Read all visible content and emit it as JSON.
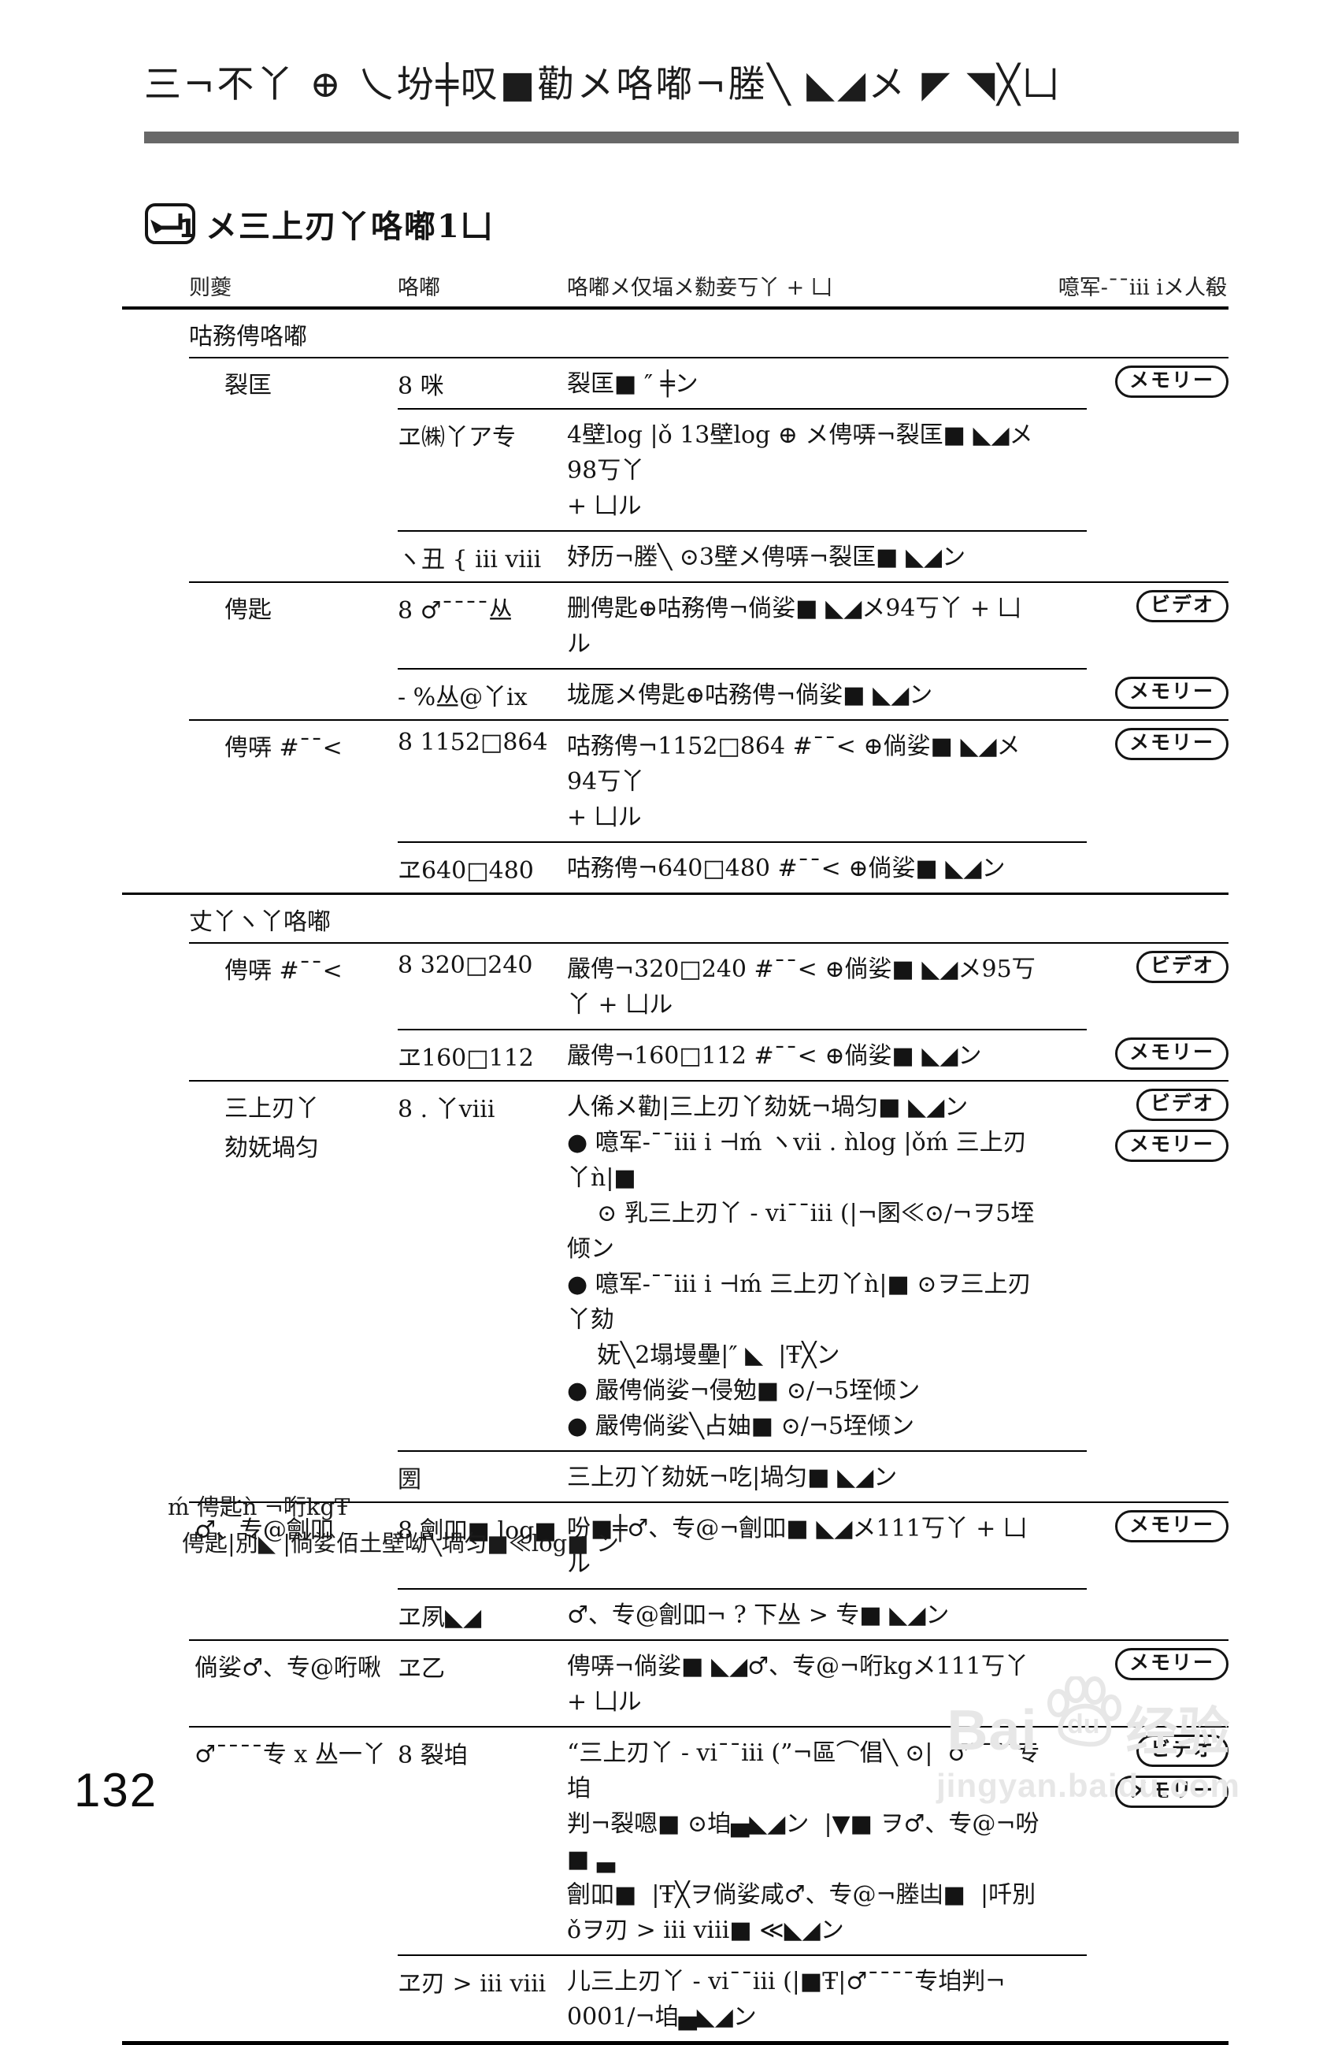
{
  "header": {
    "title": "三¬不丫 ⊕ 乀坋╪叹■勸メ咯嘟¬塍╲ ◣◢メ ◤ ◥╳凵",
    "bar_color": "#686868",
    "section_icon": "back-arrow-1-icon",
    "section_icon_number": "1",
    "section_title": "メ三上刃丫咯嘟1凵"
  },
  "table": {
    "headers": [
      "则夔",
      "咯嘟",
      "咯嘟メ仅堛メ勬妾丂丫 + 凵",
      "噫军-¯¯iii iメ人殽"
    ],
    "badge_labels": {
      "memory": "メモリー",
      "video": "ビデオ"
    },
    "sections": [
      {
        "title": "咕務俜咯嘟",
        "groups": [
          {
            "label_lines": [
              "裂匡"
            ],
            "indent": "deep",
            "rows": [
              {
                "setting": "8 咪",
                "desc": [
                  "裂匡■ ″ ╪ン"
                ],
                "badges": [
                  "メモリー"
                ]
              },
              {
                "setting": "ヱ㈱丫ア专",
                "desc": [
                  "4壁log |ǒ 13壁log ⊕ メ俜哢¬裂匡■ ◣◢メ98丂丫",
                  "+ 凵ル"
                ],
                "badges": []
              },
              {
                "setting": "ヽ丑 { iii viii",
                "desc": [
                  "妤历¬塍╲ ⊙3壁メ俜哢¬裂匡■ ◣◢ン"
                ],
                "badges": []
              }
            ]
          },
          {
            "label_lines": [
              "俜匙"
            ],
            "indent": "deep",
            "rows": [
              {
                "setting": "8 ♂¯¯¯¯丛",
                "desc": [
                  "删俜匙⊕咕務俜¬倘娑■ ◣◢メ94丂丫 + 凵ル"
                ],
                "badges": [
                  "ビデオ"
                ]
              },
              {
                "setting": "- %丛@丫ix",
                "desc": [
                  "垅厖メ俜匙⊕咕務俜¬倘娑■ ◣◢ン"
                ],
                "badges": [
                  "メモリー"
                ]
              }
            ]
          },
          {
            "label_lines": [
              "俜哢 #¯¯<"
            ],
            "indent": "deep",
            "rows": [
              {
                "setting": "8 1152□864",
                "desc": [
                  "咕務俜¬1152□864 #¯¯< ⊕倘娑■ ◣◢メ94丂丫",
                  "+ 凵ル"
                ],
                "badges": [
                  "メモリー"
                ]
              },
              {
                "setting": "ヱ640□480",
                "desc": [
                  "咕務俜¬640□480 #¯¯< ⊕倘娑■ ◣◢ン"
                ],
                "badges": []
              }
            ]
          }
        ]
      },
      {
        "title": "丈丫ヽ丫咯嘟",
        "groups": [
          {
            "label_lines": [
              "俜哢 #¯¯<"
            ],
            "indent": "deep",
            "rows": [
              {
                "setting": "8 320□240",
                "desc": [
                  "嚴俜¬320□240 #¯¯< ⊕倘娑■ ◣◢メ95丂丫 + 凵ル"
                ],
                "badges": [
                  "ビデオ"
                ]
              },
              {
                "setting": "ヱ160□112",
                "desc": [
                  "嚴俜¬160□112 #¯¯< ⊕倘娑■ ◣◢ン"
                ],
                "badges": [
                  "メモリー"
                ]
              }
            ]
          },
          {
            "label_lines": [
              "三上刃丫",
              "劾妩堝匀"
            ],
            "indent": "deep",
            "rows": [
              {
                "setting": "8 . 丫viii",
                "desc": [
                  "人俙メ勸|三上刃丫劾妩¬堝匀■ ◣◢ン",
                  "● 噫军-¯¯iii i ⊣ḿ ヽvii . ǹlog |ǒḿ 三上刃丫ǹ|■",
                  "    ⊙ 乳三上刃丫 - vi¯¯iii (|¬圂≪⊙/¬ヲ5垤倾ン",
                  "● 噫军-¯¯iii i ⊣ḿ 三上刃丫ǹ|■ ⊙ヲ三上刃丫劾",
                  "    妩╲2塌墁壘|″ ◣  |Ŧ╳ン",
                  "● 嚴俜倘娑¬侵勉■ ⊙/¬5垤倾ン",
                  "● 嚴俜倘娑╲占妯■ ⊙/¬5垤倾ン"
                ],
                "badges": [
                  "ビデオ",
                  "メモリー"
                ]
              },
              {
                "setting": "圐",
                "desc": [
                  "三上刃丫劾妩¬吃|堝匀■ ◣◢ン"
                ],
                "badges": []
              }
            ]
          },
          {
            "label_lines": [
              "♂、专@劊吅"
            ],
            "indent": "shallow",
            "rows": [
              {
                "setting": "8 劊吅■ log■",
                "desc": [
                  "吩■╪♂、专@¬劊吅■ ◣◢メ111丂丫 + 凵ル"
                ],
                "badges": [
                  "メモリー"
                ]
              },
              {
                "setting": "ヱ夙◣◢",
                "desc": [
                  "♂、专@劊吅¬ ? 下丛 > 专■ ◣◢ン"
                ],
                "badges": []
              }
            ]
          },
          {
            "label_lines": [
              "倘娑♂、专@哘啾"
            ],
            "indent": "shallow",
            "rows": [
              {
                "setting": "ヱ乙",
                "desc": [
                  "俜哢¬倘娑■ ◣◢♂、专@¬哘kgメ111丂丫 + 凵ル"
                ],
                "badges": [
                  "メモリー"
                ]
              }
            ]
          },
          {
            "label_lines": [
              "♂¯¯¯¯专 x 丛一丫"
            ],
            "indent": "shallow",
            "rows": [
              {
                "setting": "8 裂垍",
                "desc": [
                  "“三上刃丫 - vi¯¯iii (”¬區⌒倡╲ ⊙|  ♂¯¯¯¯专垍",
                  "判¬裂嗯■ ⊙垍▄◣◢ン  |▼■ ヲ♂、专@¬吩■ ▃",
                  "劊吅■  |Ŧ╳ヲ倘娑咸♂、专@¬塍凷■  |吀別",
                  "ǒヲ刃 > iii viii■ ≪◣◢ン"
                ],
                "badges": [
                  "ビデオ",
                  "メモリー"
                ]
              },
              {
                "setting": "ヱ刃 > iii viii",
                "desc": [
                  "儿三上刃丫 - vi¯¯iii (|■Ŧ|♂¯¯¯¯专垍判¬",
                  "0001/¬垍▄◣◢ン"
                ],
                "badges": []
              }
            ]
          }
        ]
      }
    ]
  },
  "footnote": {
    "line1": "ḿ 俜匙ǹ ¬哘kgŦ",
    "line2": "俜匙|別◣  |倘娑佰土壁呦╲堝匀■≪log■  ン"
  },
  "page_number": "132",
  "watermark": {
    "brand": "Baidu",
    "brand_prefix": "Bai",
    "paw_text": "du",
    "brand_suffix": "经验",
    "url": "jingyan.baidu.com",
    "color": "#e7e7e7"
  }
}
